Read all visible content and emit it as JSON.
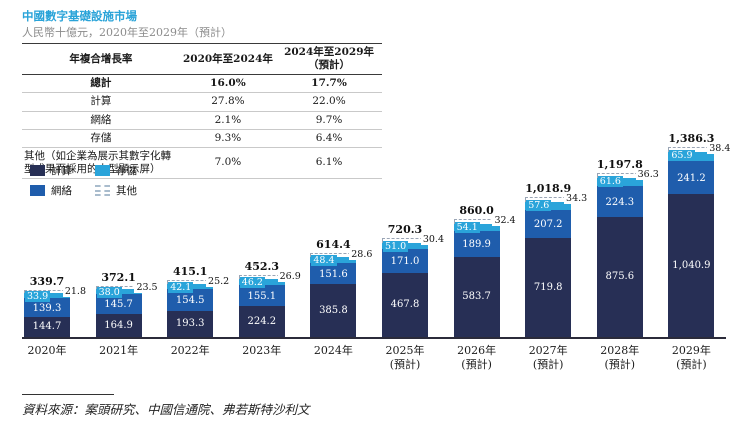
{
  "title": "中國數字基礎設施市場",
  "subtitle": "人民幣十億元，2020年至2029年（預計）",
  "source": "資料來源：案頭研究、中國信通院、弗若斯特沙利文",
  "colors": {
    "title_accent": "#29a3d8",
    "compute": "#272f55",
    "network": "#1f5dac",
    "storage": "#2aa4da",
    "other_fill": "#ffffff",
    "other_dash": "#9aa5b5",
    "axis": "#2b2b3a"
  },
  "table": {
    "headers": [
      "年複合增長率",
      "2020年至2024年",
      "2024年至2029年（預計）"
    ],
    "rows": [
      {
        "label": "總計",
        "v1": "16.0%",
        "v2": "17.7%",
        "bold": true,
        "align": "center"
      },
      {
        "label": "計算",
        "v1": "27.8%",
        "v2": "22.0%",
        "bold": false,
        "align": "center"
      },
      {
        "label": "網絡",
        "v1": "2.1%",
        "v2": "9.7%",
        "bold": false,
        "align": "center"
      },
      {
        "label": "存儲",
        "v1": "9.3%",
        "v2": "6.4%",
        "bold": false,
        "align": "center"
      },
      {
        "label": "其他（如企業為展示其數字化轉型成果而採用的大型顯示屏）",
        "v1": "7.0%",
        "v2": "6.1%",
        "bold": false,
        "align": "left"
      }
    ]
  },
  "legend": {
    "items": [
      {
        "key": "compute",
        "label": "計算"
      },
      {
        "key": "storage",
        "label": "存儲"
      },
      {
        "key": "network",
        "label": "網絡"
      },
      {
        "key": "other",
        "label": "其他"
      }
    ]
  },
  "chart_data": {
    "type": "bar",
    "stacked": true,
    "unit": "人民幣十億元",
    "categories": [
      "2020年",
      "2021年",
      "2022年",
      "2023年",
      "2024年",
      "2025年",
      "2026年",
      "2027年",
      "2028年",
      "2029年"
    ],
    "category_sublabels": [
      "",
      "",
      "",
      "",
      "",
      "(預計)",
      "(預計)",
      "(預計)",
      "(預計)",
      "(預計)"
    ],
    "series": [
      {
        "name": "計算",
        "key": "compute",
        "values": [
          144.7,
          164.9,
          193.3,
          224.2,
          385.8,
          467.8,
          583.7,
          719.8,
          875.6,
          1040.9
        ],
        "labels": [
          "144.7",
          "164.9",
          "193.3",
          "224.2",
          "385.8",
          "467.8",
          "583.7",
          "719.8",
          "875.6",
          "1,040.9"
        ]
      },
      {
        "name": "網絡",
        "key": "network",
        "values": [
          139.3,
          145.7,
          154.5,
          155.1,
          151.6,
          171.0,
          189.9,
          207.2,
          224.3,
          241.2
        ],
        "labels": [
          "139.3",
          "145.7",
          "154.5",
          "155.1",
          "151.6",
          "171.0",
          "189.9",
          "207.2",
          "224.3",
          "241.2"
        ]
      },
      {
        "name": "存儲",
        "key": "storage",
        "values": [
          33.9,
          38.0,
          42.1,
          46.2,
          48.4,
          51.0,
          54.1,
          57.6,
          61.6,
          65.9
        ],
        "labels": [
          "33.9",
          "38.0",
          "42.1",
          "46.2",
          "48.4",
          "51.0",
          "54.1",
          "57.6",
          "61.6",
          "65.9"
        ]
      },
      {
        "name": "其他",
        "key": "other",
        "values": [
          21.8,
          23.5,
          25.2,
          26.9,
          28.6,
          30.4,
          32.4,
          34.3,
          36.3,
          38.4
        ],
        "labels": [
          "21.8",
          "23.5",
          "25.2",
          "26.9",
          "28.6",
          "30.4",
          "32.4",
          "34.3",
          "36.3",
          "38.4"
        ]
      }
    ],
    "totals": [
      339.7,
      372.1,
      415.1,
      452.3,
      614.4,
      720.3,
      860.0,
      1018.9,
      1197.8,
      1386.3
    ],
    "total_labels": [
      "339.7",
      "372.1",
      "415.1",
      "452.3",
      "614.4",
      "720.3",
      "860.0",
      "1,018.9",
      "1,197.8",
      "1,386.3"
    ],
    "ylim": [
      0,
      1400
    ],
    "grid": false,
    "legend_position": "upper-left"
  }
}
